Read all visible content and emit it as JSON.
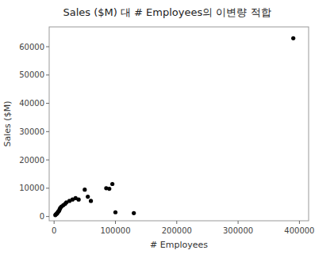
{
  "chart_data": {
    "type": "scatter",
    "title": "Sales ($M) 대 # Employees의 이변량 적합",
    "xlabel": "# Employees",
    "ylabel": "Sales ($M)",
    "x": [
      2000,
      3000,
      4500,
      5000,
      6000,
      7000,
      8000,
      9000,
      10000,
      12000,
      15000,
      18000,
      20000,
      25000,
      30000,
      35000,
      40000,
      50000,
      55000,
      60000,
      85000,
      90000,
      95000,
      100000,
      130000,
      390000
    ],
    "y": [
      500,
      800,
      1000,
      1200,
      1500,
      1800,
      2000,
      2500,
      3000,
      3500,
      4000,
      4500,
      5000,
      5500,
      6000,
      6500,
      6000,
      9500,
      7000,
      5500,
      10000,
      9800,
      11500,
      1500,
      1200,
      63000
    ],
    "color": "#000000",
    "xlim": [
      -8000,
      415000
    ],
    "ylim": [
      -1500,
      67000
    ],
    "xticks": [
      0,
      100000,
      200000,
      300000,
      400000
    ],
    "yticks": [
      0,
      10000,
      20000,
      30000,
      40000,
      50000,
      60000
    ],
    "grid": false
  }
}
